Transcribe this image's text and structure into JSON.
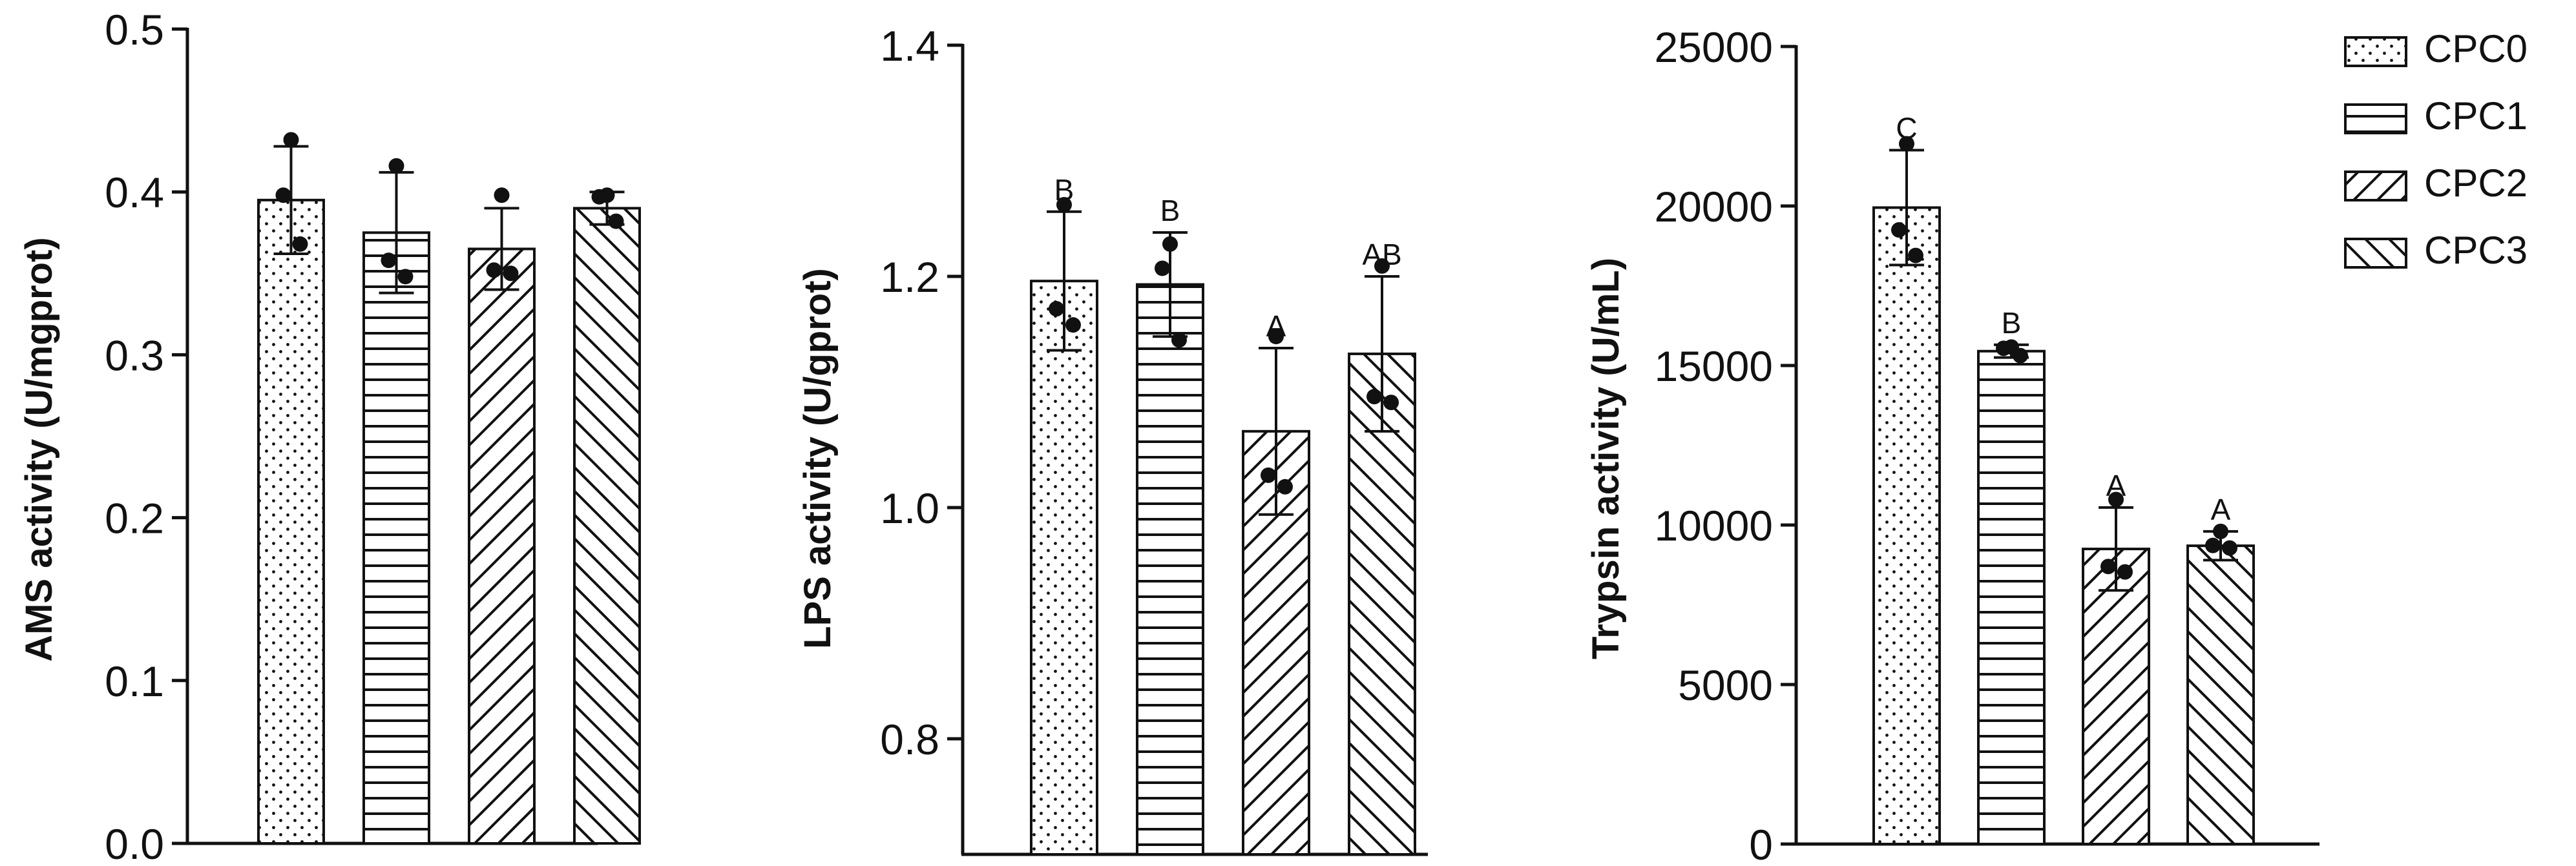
{
  "chart_data": [
    {
      "type": "bar",
      "categories": [
        "CPC0",
        "CPC1",
        "CPC2",
        "CPC3"
      ],
      "ylabel": "AMS activity (U/mgprot)",
      "ylim": [
        0,
        0.5
      ],
      "yticks": [
        "0.0",
        "0.1",
        "0.2",
        "0.3",
        "0.4",
        "0.5"
      ],
      "values": [
        0.395,
        0.375,
        0.365,
        0.39
      ],
      "errors": [
        0.033,
        0.037,
        0.025,
        0.01
      ],
      "points": [
        [
          0.432,
          0.398,
          0.368
        ],
        [
          0.416,
          0.358,
          0.348
        ],
        [
          0.398,
          0.352,
          0.35
        ],
        [
          0.398,
          0.397,
          0.382
        ]
      ],
      "letters": [
        "",
        "",
        "",
        ""
      ]
    },
    {
      "type": "bar",
      "categories": [
        "CPC0",
        "CPC1",
        "CPC2",
        "CPC3"
      ],
      "ylabel": "LPS activity (U/gprot)",
      "ylim": [
        0.7,
        1.4
      ],
      "yticks": [
        "0.8",
        "1.0",
        "1.2",
        "1.4"
      ],
      "values": [
        1.196,
        1.193,
        1.066,
        1.133
      ],
      "errors": [
        0.06,
        0.045,
        0.072,
        0.067
      ],
      "points": [
        [
          1.262,
          1.172,
          1.158
        ],
        [
          1.228,
          1.207,
          1.145
        ],
        [
          1.148,
          1.028,
          1.018
        ],
        [
          1.209,
          1.096,
          1.091
        ]
      ],
      "letters": [
        "B",
        "B",
        "A",
        "AB"
      ]
    },
    {
      "type": "bar",
      "categories": [
        "CPC0",
        "CPC1",
        "CPC2",
        "CPC3"
      ],
      "ylabel": "Trypsin activity (U/mL)",
      "ylim": [
        0,
        25000
      ],
      "yticks": [
        "0",
        "5000",
        "10000",
        "15000",
        "20000",
        "25000"
      ],
      "values": [
        19950,
        15450,
        9250,
        9350
      ],
      "errors": [
        1800,
        200,
        1300,
        450
      ],
      "points": [
        [
          21950,
          19250,
          18450
        ],
        [
          15580,
          15540,
          15310
        ],
        [
          10800,
          8700,
          8530
        ],
        [
          9800,
          9360,
          9280
        ]
      ],
      "letters": [
        "C",
        "B",
        "A",
        "A"
      ]
    }
  ],
  "legend": {
    "placement": "top-right",
    "entries": [
      {
        "label": "CPC0",
        "pattern": "dots"
      },
      {
        "label": "CPC1",
        "pattern": "horizontal"
      },
      {
        "label": "CPC2",
        "pattern": "diagonal-up"
      },
      {
        "label": "CPC3",
        "pattern": "diagonal-down"
      }
    ]
  }
}
